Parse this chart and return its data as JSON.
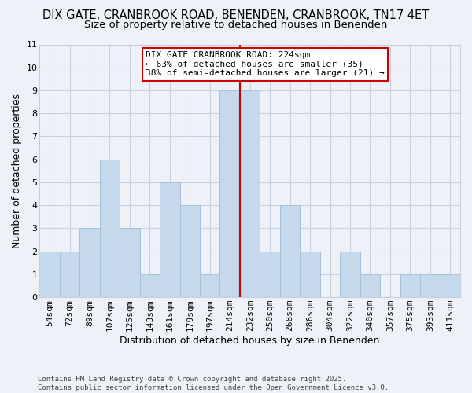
{
  "title": "DIX GATE, CRANBROOK ROAD, BENENDEN, CRANBROOK, TN17 4ET",
  "subtitle": "Size of property relative to detached houses in Benenden",
  "xlabel": "Distribution of detached houses by size in Benenden",
  "ylabel": "Number of detached properties",
  "bar_labels": [
    "54sqm",
    "72sqm",
    "89sqm",
    "107sqm",
    "125sqm",
    "143sqm",
    "161sqm",
    "179sqm",
    "197sqm",
    "214sqm",
    "232sqm",
    "250sqm",
    "268sqm",
    "286sqm",
    "304sqm",
    "322sqm",
    "340sqm",
    "357sqm",
    "375sqm",
    "393sqm",
    "411sqm"
  ],
  "bar_values": [
    2,
    2,
    3,
    6,
    3,
    1,
    5,
    4,
    1,
    9,
    9,
    2,
    4,
    2,
    0,
    2,
    1,
    0,
    1,
    1,
    1
  ],
  "bar_color": "#c5d8ec",
  "bar_edge_color": "#a8c0d8",
  "vline_position": 9.5,
  "vline_color": "#cc0000",
  "annotation_title": "DIX GATE CRANBROOK ROAD: 224sqm",
  "annotation_line1": "← 63% of detached houses are smaller (35)",
  "annotation_line2": "38% of semi-detached houses are larger (21) →",
  "annotation_box_facecolor": "#ffffff",
  "annotation_box_edgecolor": "#cc0000",
  "ylim": [
    0,
    11
  ],
  "yticks": [
    0,
    1,
    2,
    3,
    4,
    5,
    6,
    7,
    8,
    9,
    10,
    11
  ],
  "background_color": "#eef2f8",
  "plot_bg_color": "#eef2f8",
  "grid_color": "#c8d0e0",
  "footer_line1": "Contains HM Land Registry data © Crown copyright and database right 2025.",
  "footer_line2": "Contains public sector information licensed under the Open Government Licence v3.0.",
  "title_fontsize": 10.5,
  "subtitle_fontsize": 9.5,
  "axis_label_fontsize": 9,
  "tick_fontsize": 8,
  "annotation_fontsize": 8,
  "footer_fontsize": 6.5
}
